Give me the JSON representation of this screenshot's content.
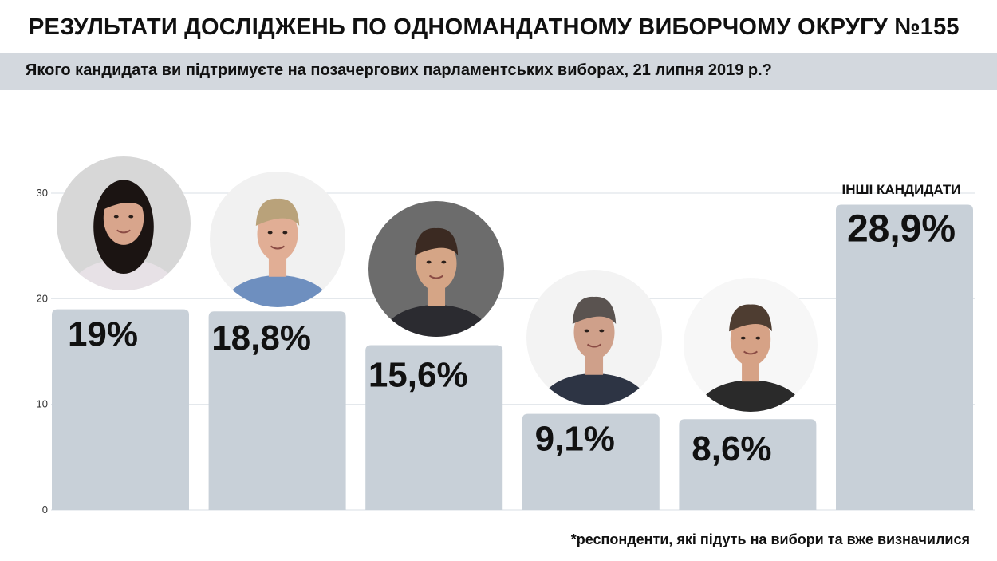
{
  "header": {
    "title": "РЕЗУЛЬТАТИ ДОСЛІДЖЕНЬ ПО ОДНОМАНДАТНОМУ ВИБОРЧОМУ ОКРУГУ №155",
    "subtitle": "Якого кандидата ви підтримуєте на позачергових парламентських виборах, 21 липня 2019 р.?"
  },
  "footnote": "*респонденти, які підуть на вибори та вже визначилися",
  "colors": {
    "bar": "#c8d0d8",
    "band": "#d3d8de",
    "grid": "#e1e5e9",
    "text": "#111111"
  },
  "chart_data": {
    "type": "bar",
    "categories": [
      "",
      "",
      "",
      "",
      "",
      "ІНШІ КАНДИДАТИ"
    ],
    "values": [
      19,
      18.8,
      15.6,
      9.1,
      8.6,
      28.9
    ],
    "value_labels": [
      "19%",
      "18,8%",
      "15,6%",
      "9,1%",
      "8,6%",
      "28,9%"
    ],
    "ylim": [
      0,
      30
    ],
    "yticks": [
      0,
      10,
      20,
      30
    ],
    "grid": true,
    "candidate_photos": [
      {
        "icon": "candidate-portrait-1",
        "hair": "#1b1412",
        "skin": "#d8a58c",
        "shirt": "#e7e1e6",
        "bg": "#d7d7d7"
      },
      {
        "icon": "candidate-portrait-2",
        "hair": "#b9a27a",
        "skin": "#e1ae95",
        "shirt": "#6e8fbf",
        "bg": "#f1f1f1"
      },
      {
        "icon": "candidate-portrait-3",
        "hair": "#3b2a22",
        "skin": "#d5a586",
        "shirt": "#2b2b30",
        "bg": "#6c6c6c"
      },
      {
        "icon": "candidate-portrait-4",
        "hair": "#5a5350",
        "skin": "#cfa08a",
        "shirt": "#2d3444",
        "bg": "#f3f3f3"
      },
      {
        "icon": "candidate-portrait-5",
        "hair": "#4e3d31",
        "skin": "#d6a286",
        "shirt": "#2a2a2a",
        "bg": "#f7f7f7"
      }
    ]
  }
}
